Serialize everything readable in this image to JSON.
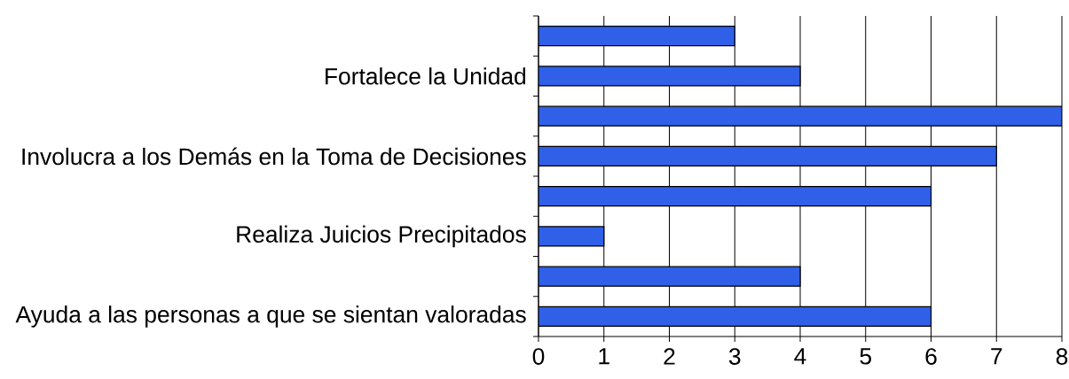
{
  "chart_data": {
    "type": "bar",
    "orientation": "horizontal",
    "categories": [
      null,
      "Fortalece la Unidad",
      null,
      "Involucra a los Demás en la Toma de Decisiones",
      null,
      "Realiza Juicios Precipitados",
      null,
      "Ayuda a las personas a que se sientan valoradas"
    ],
    "values": [
      3,
      4,
      8,
      7,
      6,
      1,
      4,
      6
    ],
    "color": "#3060e8",
    "xlim": [
      0,
      8
    ],
    "xticks": [
      0,
      1,
      2,
      3,
      4,
      5,
      6,
      7,
      8
    ],
    "grid": "x"
  }
}
